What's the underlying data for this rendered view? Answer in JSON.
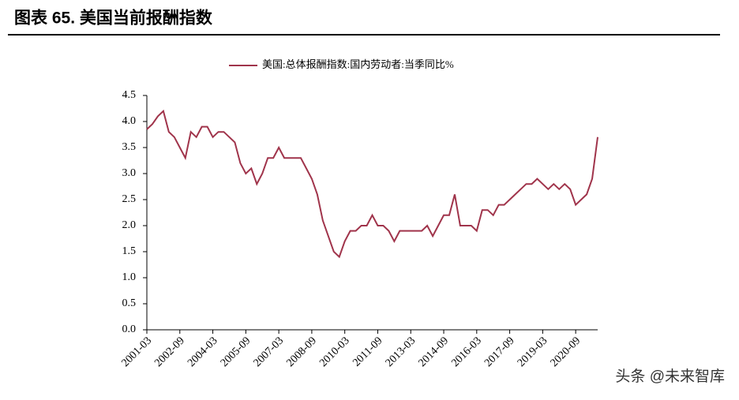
{
  "title": "图表 65. 美国当前报酬指数",
  "watermark": "头条 @未来智库",
  "chart_data": {
    "type": "line",
    "categories": [
      "2001-03",
      null,
      null,
      null,
      null,
      null,
      "2002-09",
      null,
      null,
      null,
      null,
      null,
      "2004-03",
      null,
      null,
      null,
      null,
      null,
      "2005-09",
      null,
      null,
      null,
      null,
      null,
      "2007-03",
      null,
      null,
      null,
      null,
      null,
      "2008-09",
      null,
      null,
      null,
      null,
      null,
      "2010-03",
      null,
      null,
      null,
      null,
      null,
      "2011-09",
      null,
      null,
      null,
      null,
      null,
      "2013-03",
      null,
      null,
      null,
      null,
      null,
      "2014-09",
      null,
      null,
      null,
      null,
      null,
      "2016-03",
      null,
      null,
      null,
      null,
      null,
      "2017-09",
      null,
      null,
      null,
      null,
      null,
      "2019-03",
      null,
      null,
      null,
      null,
      null,
      "2020-09",
      null,
      null,
      null,
      null
    ],
    "series": [
      {
        "name": "美国:总体报酬指数:国内劳动者:当季同比%",
        "color": "#a0344b",
        "values": [
          3.85,
          3.95,
          4.1,
          4.2,
          3.8,
          3.7,
          3.5,
          3.3,
          3.8,
          3.7,
          3.9,
          3.9,
          3.7,
          3.8,
          3.8,
          3.7,
          3.6,
          3.2,
          3.0,
          3.1,
          2.8,
          3.0,
          3.3,
          3.3,
          3.5,
          3.3,
          3.3,
          3.3,
          3.3,
          3.1,
          2.9,
          2.6,
          2.1,
          1.8,
          1.5,
          1.4,
          1.7,
          1.9,
          1.9,
          2.0,
          2.0,
          2.2,
          2.0,
          2.0,
          1.9,
          1.7,
          1.9,
          1.9,
          1.9,
          1.9,
          1.9,
          2.0,
          1.8,
          2.0,
          2.2,
          2.2,
          2.6,
          2.0,
          2.0,
          2.0,
          1.9,
          2.3,
          2.3,
          2.2,
          2.4,
          2.4,
          2.5,
          2.6,
          2.7,
          2.8,
          2.8,
          2.9,
          2.8,
          2.7,
          2.8,
          2.7,
          2.8,
          2.7,
          2.4,
          2.5,
          2.6,
          2.9,
          3.7
        ]
      }
    ],
    "ylim": [
      0,
      4.5
    ],
    "yticks": [
      {
        "value": 0,
        "label": "0.0"
      },
      {
        "value": 0.5,
        "label": "0.5"
      },
      {
        "value": 1,
        "label": "1.0"
      },
      {
        "value": 1.5,
        "label": "1.5"
      },
      {
        "value": 2,
        "label": "2.0"
      },
      {
        "value": 2.5,
        "label": "2.5"
      },
      {
        "value": 3,
        "label": "3.0"
      },
      {
        "value": 3.5,
        "label": "3.5"
      },
      {
        "value": 4,
        "label": "4.0"
      },
      {
        "value": 4.5,
        "label": "4.5"
      }
    ],
    "legend": "top",
    "grid": false
  }
}
